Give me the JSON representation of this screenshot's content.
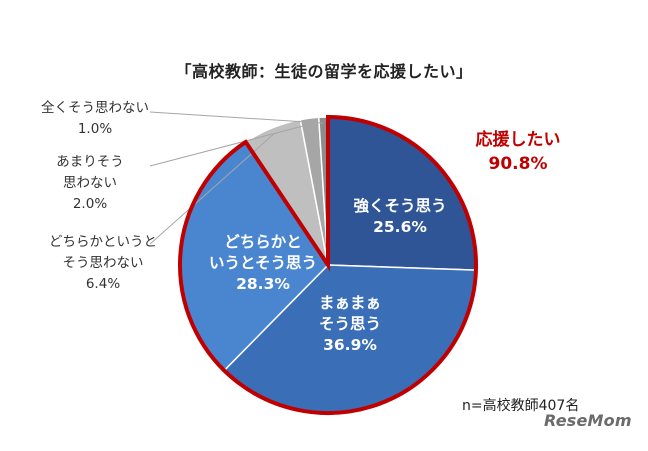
{
  "chart_data": {
    "type": "pie",
    "title": "「高校教師：生徒の留学を応援したい」",
    "slices": [
      {
        "label_lines": [
          "強くそう思う"
        ],
        "value": 25.6,
        "value_label": "25.6%",
        "color": "#2f5597"
      },
      {
        "label_lines": [
          "まぁまぁ",
          "そう思う"
        ],
        "value": 36.9,
        "value_label": "36.9%",
        "color": "#3a6fb8"
      },
      {
        "label_lines": [
          "どちらかと",
          "いうとそう思う"
        ],
        "value": 28.3,
        "value_label": "28.3%",
        "color": "#4a86cf"
      },
      {
        "label_lines": [
          "どちらかというと",
          "そう思わない"
        ],
        "value": 6.4,
        "value_label": "6.4%",
        "color": "#bfbfbf"
      },
      {
        "label_lines": [
          "あまりそう",
          "思わない"
        ],
        "value": 2.0,
        "value_label": "2.0%",
        "color": "#a6a6a6"
      },
      {
        "label_lines": [
          "全くそう思わない"
        ],
        "value": 1.0,
        "value_label": "1.0%",
        "color": "#8c8c8c"
      }
    ],
    "highlight": {
      "label": "応援したい",
      "value": 90.8,
      "value_label": "90.8%",
      "color": "#c00000"
    },
    "note": "n=高校教師407名"
  },
  "logo_text": "ReseMom"
}
